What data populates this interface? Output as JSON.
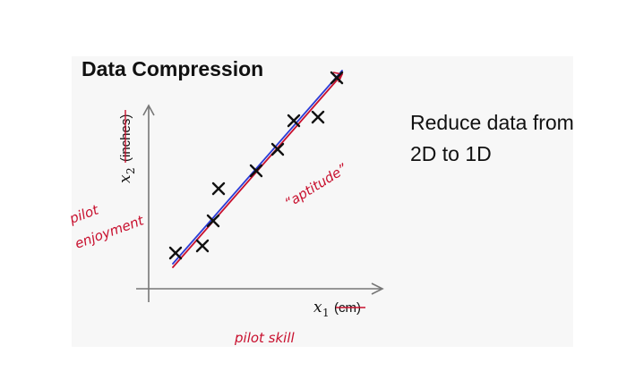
{
  "slide": {
    "title": "Data Compression",
    "side_text_line1": "Reduce data from",
    "side_text_line2": "2D to 1D"
  },
  "plot": {
    "y_axis_label": "x",
    "y_axis_subscript": "2",
    "y_axis_unit": "(inches)",
    "x_axis_label": "x",
    "x_axis_subscript": "1",
    "x_axis_unit": "(cm)"
  },
  "annotations": {
    "aptitude": "“aptitude”",
    "pilot_enjoyment_line1": "pilot",
    "pilot_enjoyment_line2": "enjoyment",
    "pilot_skill": "pilot   skill"
  },
  "colors": {
    "annotation": "#c8102e",
    "regression_line": "#2b3bd6",
    "data_marker": "#111111",
    "axis": "#777777"
  },
  "chart_data": {
    "type": "scatter",
    "title": "",
    "xlabel": "x1 (cm)",
    "ylabel": "x2 (inches)",
    "grid": false,
    "legend": "none",
    "x": [
      1.0,
      2.0,
      2.4,
      2.6,
      4.0,
      4.8,
      5.4,
      6.3,
      7.0
    ],
    "y": [
      1.0,
      1.2,
      1.9,
      2.8,
      3.3,
      3.9,
      4.7,
      4.8,
      5.9
    ],
    "xlim": [
      0,
      9
    ],
    "ylim": [
      0,
      6.5
    ],
    "fit_line": {
      "x": [
        0.9,
        7.2
      ],
      "y": [
        0.7,
        6.1
      ]
    },
    "projection_line": {
      "x": [
        0.9,
        7.2
      ],
      "y": [
        0.6,
        6.0
      ]
    }
  }
}
